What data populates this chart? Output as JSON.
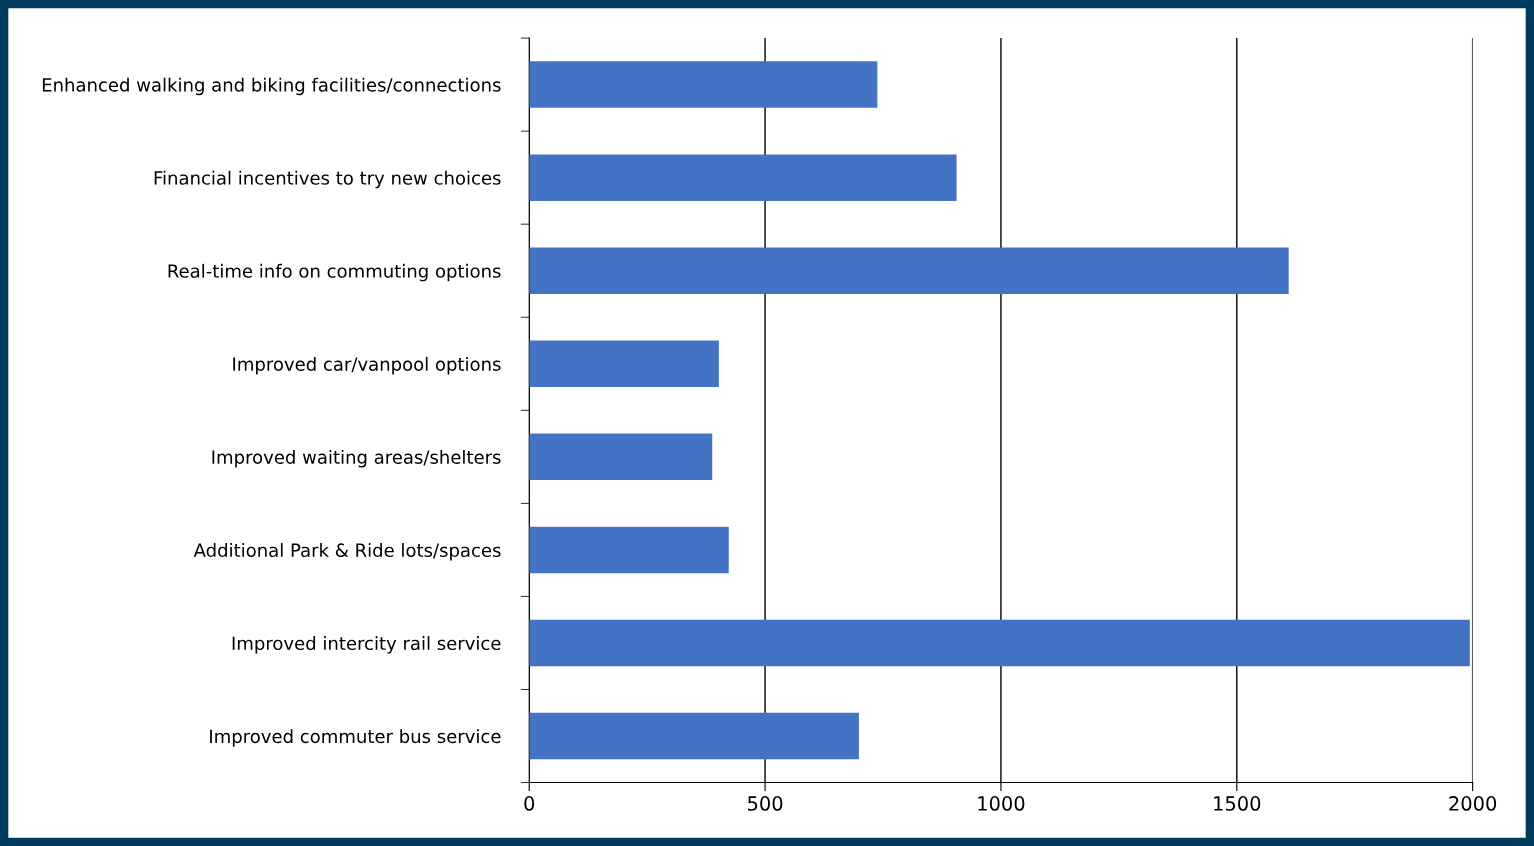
{
  "chart_data": {
    "type": "bar",
    "orientation": "horizontal",
    "categories": [
      "Enhanced walking and biking facilities/connections",
      "Financial incentives to try new choices",
      "Real-time info on commuting options",
      "Improved car/vanpool options",
      "Improved waiting areas/shelters",
      "Additional Park & Ride lots/spaces",
      "Improved intercity rail service",
      "Improved commuter bus service"
    ],
    "values": [
      738,
      906,
      1610,
      402,
      388,
      423,
      1994,
      699
    ],
    "color": "#4472c4",
    "xlim": [
      0,
      2000
    ],
    "xticks": [
      0,
      500,
      1000,
      1500,
      2000
    ],
    "grid": "x",
    "legend": false
  }
}
